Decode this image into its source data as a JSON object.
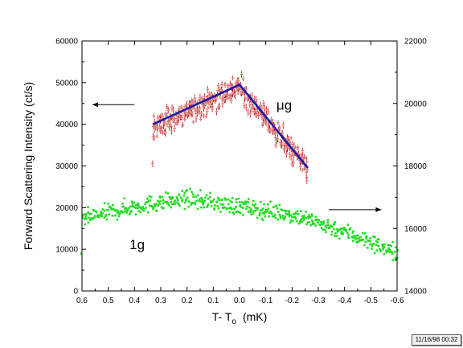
{
  "chart_data": {
    "type": "scatter",
    "xlabel": "T- T",
    "xlabel_sub": "o",
    "xlabel_unit": "(mK)",
    "ylabel_left": "Forward Scattering Intensity (ct/s)",
    "x_ticks": [
      "0.6",
      "0.5",
      "0.4",
      "0.3",
      "0.2",
      "0.1",
      "0.0",
      "-0.1",
      "-0.2",
      "-0.3",
      "-0.4",
      "-0.5",
      "-0.6"
    ],
    "xlim": [
      0.6,
      -0.6
    ],
    "ylim_left": [
      0,
      60000
    ],
    "y_ticks_left": [
      "0",
      "10000",
      "20000",
      "30000",
      "40000",
      "50000",
      "60000"
    ],
    "ylim_right": [
      14000,
      22000
    ],
    "y_ticks_right": [
      "14000",
      "16000",
      "18000",
      "20000",
      "22000"
    ],
    "grid": false,
    "series": [
      {
        "name": "μg",
        "axis": "left",
        "color": "#b00000",
        "marker": "errorbar",
        "x_range": [
          0.33,
          -0.26
        ],
        "trend": [
          [
            0.33,
            39000
          ],
          [
            0.0,
            49000
          ],
          [
            -0.26,
            29000
          ]
        ],
        "scatter_spread": 2800,
        "n_points": 420
      },
      {
        "name": "1g",
        "axis": "right",
        "color": "#22dd22",
        "marker": "square",
        "x_range": [
          0.6,
          -0.6
        ],
        "trend": [
          [
            0.6,
            16300
          ],
          [
            0.4,
            16700
          ],
          [
            0.2,
            16950
          ],
          [
            0.0,
            16700
          ],
          [
            -0.2,
            16450
          ],
          [
            -0.4,
            15900
          ],
          [
            -0.6,
            15200
          ]
        ],
        "scatter_spread": 260,
        "n_points": 560
      }
    ],
    "fit_lines": [
      {
        "color": "#1a1aa8",
        "points": [
          [
            0.33,
            40000
          ],
          [
            0.0,
            49500
          ],
          [
            -0.26,
            29500
          ]
        ]
      }
    ],
    "annotations": [
      {
        "text": "μg",
        "x": -0.17,
        "y": 43500,
        "axis": "left"
      },
      {
        "text": "1g",
        "x": 0.39,
        "y": 10000,
        "axis": "left"
      }
    ],
    "arrows": [
      {
        "direction": "left",
        "from": [
          0.4,
          44700
        ],
        "to": [
          0.56,
          44700
        ],
        "axis": "left"
      },
      {
        "direction": "right",
        "from": [
          -0.34,
          19500
        ],
        "to": [
          -0.54,
          19500
        ],
        "axis": "left"
      }
    ]
  },
  "timestamp": "11/16/98 00:32"
}
